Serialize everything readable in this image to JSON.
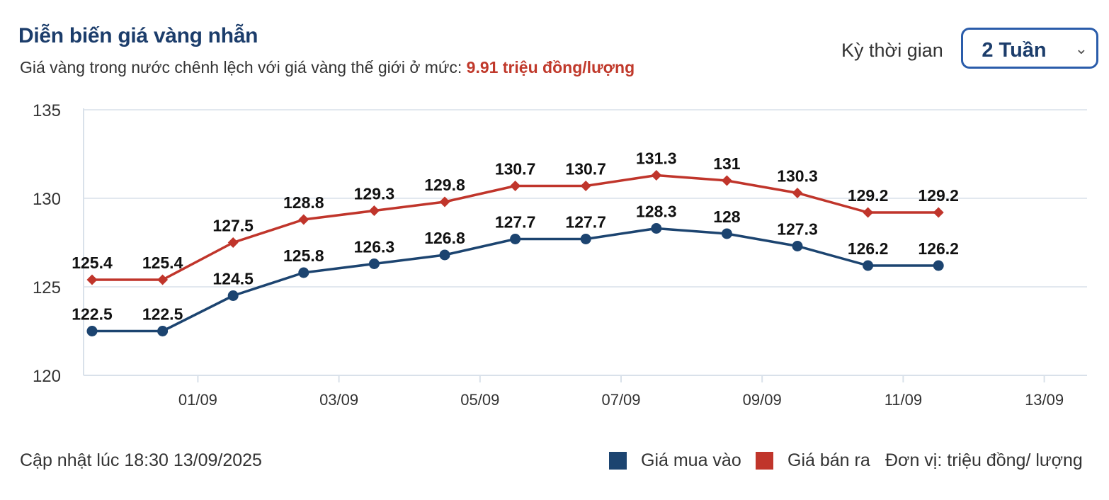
{
  "header": {
    "title": "Diễn biến giá vàng nhẫn",
    "subtitle_prefix": "Giá vàng trong nước chênh lệch với giá vàng thế giới ở mức: ",
    "subtitle_value": "9.91 triệu đồng/lượng"
  },
  "period": {
    "label": "Kỳ thời gian",
    "selected": "2 Tuần"
  },
  "footer": {
    "updated": "Cập nhật lúc 18:30 13/09/2025",
    "unit": "Đơn vị: triệu đồng/ lượng"
  },
  "colors": {
    "buy": "#1c4470",
    "sell": "#c0352b",
    "grid": "#d9e1ea",
    "axis_text": "#333333"
  },
  "chart_data": {
    "type": "line",
    "x_ticks": [
      "01/09",
      "03/09",
      "05/09",
      "07/09",
      "09/09",
      "11/09",
      "13/09"
    ],
    "ylim": [
      120,
      135
    ],
    "y_ticks": [
      120,
      125,
      130,
      135
    ],
    "grid": true,
    "legend": "bottom-right",
    "series": [
      {
        "name": "Giá mua vào",
        "marker": "circle",
        "values": [
          122.5,
          122.5,
          124.5,
          125.8,
          126.3,
          126.8,
          127.7,
          127.7,
          128.3,
          128,
          127.3,
          126.2,
          126.2
        ]
      },
      {
        "name": "Giá bán ra",
        "marker": "diamond",
        "values": [
          125.4,
          125.4,
          127.5,
          128.8,
          129.3,
          129.8,
          130.7,
          130.7,
          131.3,
          131,
          130.3,
          129.2,
          129.2
        ]
      }
    ]
  }
}
